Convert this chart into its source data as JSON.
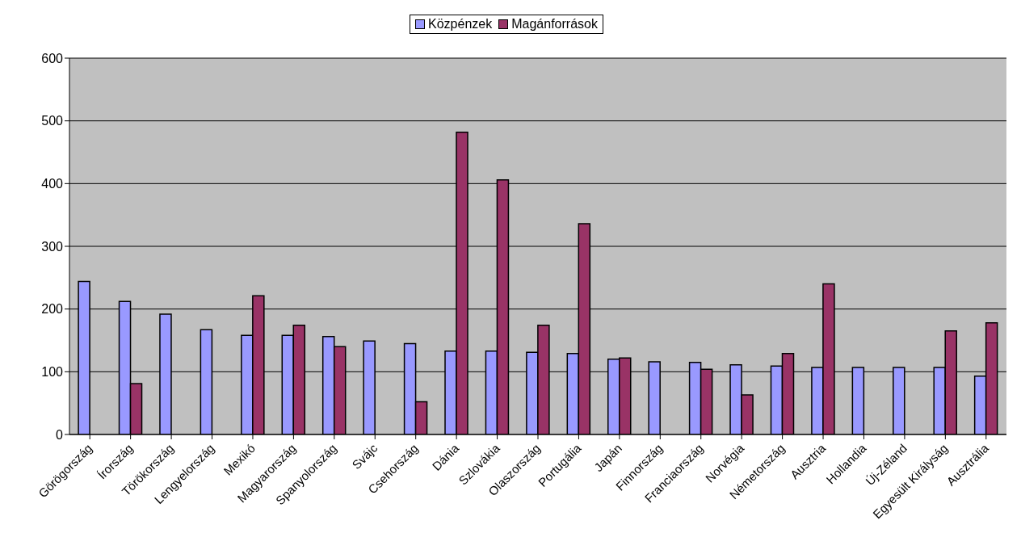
{
  "chart_data": {
    "type": "bar",
    "categories": [
      "Görögország",
      "Írország",
      "Törökország",
      "Lengyelország",
      "Mexikó",
      "Magyarország",
      "Spanyolország",
      "Svájc",
      "Csehország",
      "Dánia",
      "Szlovákia",
      "Olaszország",
      "Portugália",
      "Japán",
      "Finnország",
      "Franciaország",
      "Norvégia",
      "Németország",
      "Ausztria",
      "Hollandia",
      "Új-Zéland",
      "Egyesült Királyság",
      "Ausztrália"
    ],
    "series": [
      {
        "name": "Közpénzek",
        "color": "#9999ff",
        "values": [
          244,
          212,
          192,
          167,
          158,
          158,
          156,
          149,
          145,
          133,
          133,
          131,
          129,
          120,
          116,
          115,
          111,
          109,
          107,
          107,
          107,
          107,
          93
        ]
      },
      {
        "name": "Magánforrások",
        "color": "#993366",
        "values": [
          null,
          81,
          null,
          null,
          221,
          174,
          140,
          null,
          52,
          482,
          406,
          174,
          336,
          122,
          null,
          104,
          63,
          129,
          240,
          null,
          null,
          165,
          178
        ]
      }
    ],
    "ylim": [
      0,
      600
    ],
    "yticks": [
      0,
      100,
      200,
      300,
      400,
      500,
      600
    ],
    "grid": "y",
    "legend": "top"
  }
}
